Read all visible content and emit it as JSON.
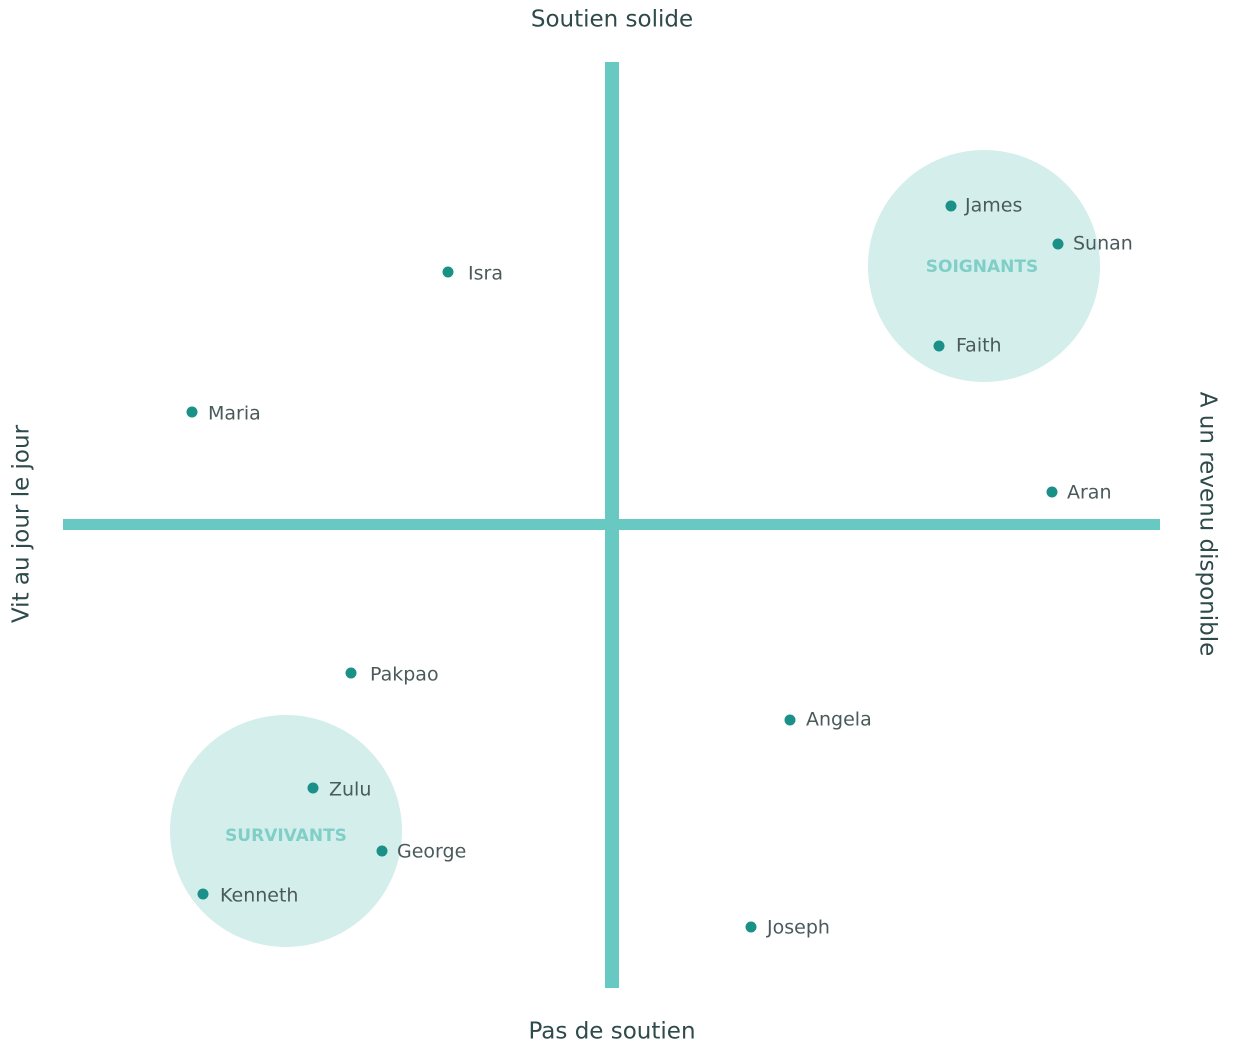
{
  "axes": {
    "top": "Soutien solide",
    "bottom": "Pas de soutien",
    "left": "Vit au jour le jour",
    "right": "A un revenu disponible"
  },
  "groups": [
    "SOIGNANTS",
    "SURVIVANTS"
  ],
  "people": [
    "James",
    "Sunan",
    "Faith",
    "Isra",
    "Maria",
    "Aran",
    "Pakpao",
    "Angela",
    "Zulu",
    "George",
    "Kenneth",
    "Joseph"
  ]
}
